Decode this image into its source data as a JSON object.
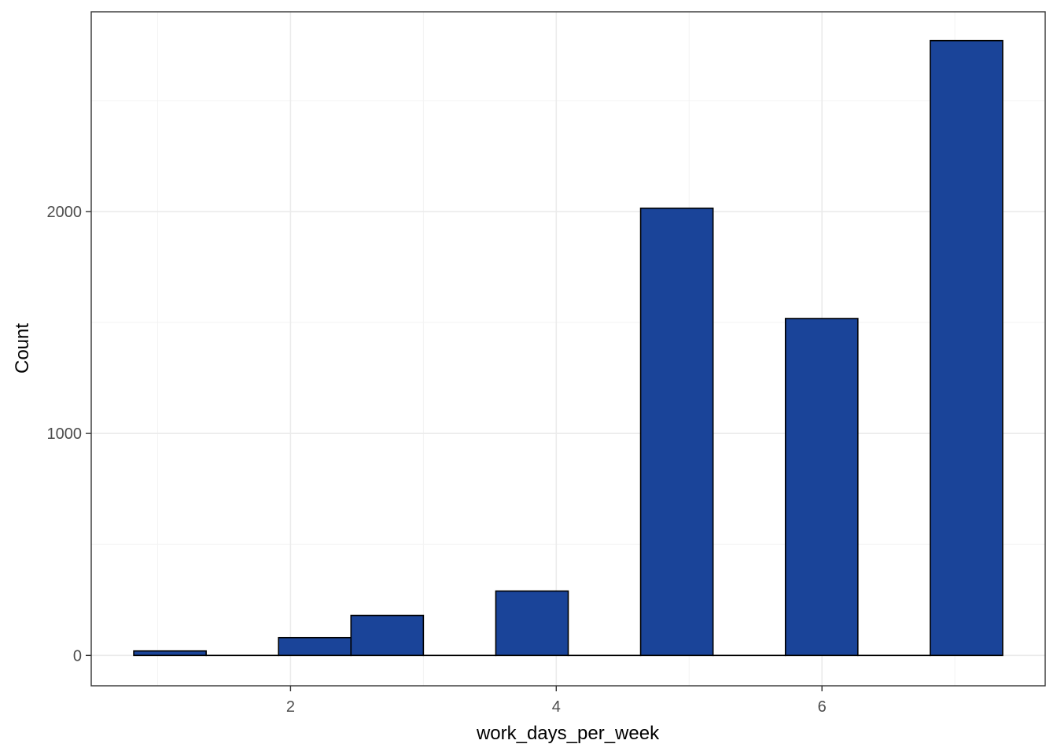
{
  "chart_data": {
    "type": "bar",
    "title": "",
    "xlabel": "work_days_per_week",
    "ylabel": "Count",
    "bin_width": 0.545,
    "x_bins": [
      {
        "x_start": 0.82,
        "x_end": 1.365,
        "count": 20
      },
      {
        "x_start": 1.365,
        "x_end": 1.91,
        "count": 0
      },
      {
        "x_start": 1.91,
        "x_end": 2.455,
        "count": 80
      },
      {
        "x_start": 2.455,
        "x_end": 3.0,
        "count": 180
      },
      {
        "x_start": 3.0,
        "x_end": 3.545,
        "count": 0
      },
      {
        "x_start": 3.545,
        "x_end": 4.09,
        "count": 290
      },
      {
        "x_start": 4.09,
        "x_end": 4.635,
        "count": 0
      },
      {
        "x_start": 4.635,
        "x_end": 5.18,
        "count": 2015
      },
      {
        "x_start": 5.18,
        "x_end": 5.725,
        "count": 0
      },
      {
        "x_start": 5.725,
        "x_end": 6.27,
        "count": 1518
      },
      {
        "x_start": 6.27,
        "x_end": 6.815,
        "count": 0
      },
      {
        "x_start": 6.815,
        "x_end": 7.36,
        "count": 2770
      }
    ],
    "xlim": [
      0.5,
      7.68
    ],
    "ylim": [
      -137,
      2900
    ],
    "x_ticks": [
      2,
      4,
      6
    ],
    "x_tick_labels": [
      "2",
      "4",
      "6"
    ],
    "x_minor_ticks": [
      1,
      3,
      5,
      7
    ],
    "y_ticks": [
      0,
      1000,
      2000
    ],
    "y_tick_labels": [
      "0",
      "1000",
      "2000"
    ],
    "y_minor_ticks": [
      500,
      1500,
      2500
    ],
    "grid": true,
    "legend": "none",
    "colors": {
      "bar_fill": "#1a4499",
      "bar_outline": "#000000",
      "panel_border": "#333333",
      "grid_major": "#ebebeb",
      "grid_minor": "#f3f3f3"
    }
  }
}
